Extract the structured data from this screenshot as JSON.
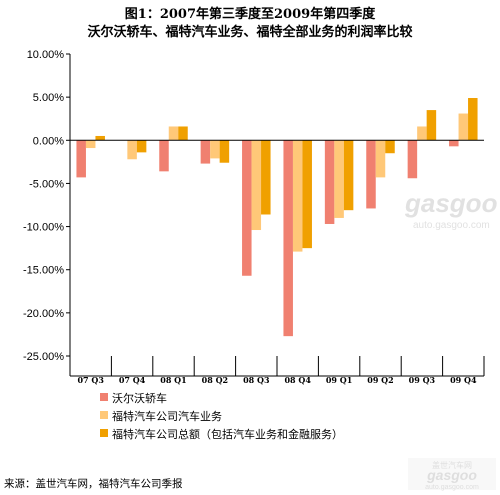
{
  "chart_data": {
    "type": "bar",
    "title_line1": "图1：2007年第三季度至2009年第四季度",
    "title_line2": "沃尔沃轿车、福特汽车业务、福特全部业务的利润率比较",
    "categories": [
      "07 Q3",
      "07 Q4",
      "08 Q1",
      "08 Q2",
      "08 Q3",
      "08 Q4",
      "09 Q1",
      "09 Q2",
      "09 Q3",
      "09 Q4"
    ],
    "y_ticks": [
      "10.00%",
      "5.00%",
      "0.00%",
      "-5.00%",
      "-10.00%",
      "-15.00%",
      "-20.00%",
      "-25.00%"
    ],
    "ylim": [
      -25,
      10
    ],
    "unit": "%",
    "grid": false,
    "legend_position": "bottom-left",
    "series": [
      {
        "name": "沃尔沃轿车",
        "color": "#f08070",
        "values": [
          -4.3,
          null,
          -3.6,
          -2.7,
          -15.7,
          -22.7,
          -9.7,
          -7.9,
          -4.4,
          -0.7
        ]
      },
      {
        "name": "福特汽车公司汽车业务",
        "color": "#ffc878",
        "values": [
          -0.9,
          -2.2,
          1.6,
          -2.1,
          -10.4,
          -12.9,
          -9.0,
          -4.3,
          1.6,
          3.1
        ]
      },
      {
        "name": "福特汽车公司总额（包括汽车业务和金融服务）",
        "color": "#f0a000",
        "values": [
          0.5,
          -1.4,
          1.6,
          -2.6,
          -8.6,
          -12.5,
          -8.1,
          -1.5,
          3.5,
          4.9
        ]
      }
    ]
  },
  "source": "来源：盖世汽车网，福特汽车公司季报",
  "watermark": {
    "brand": "gasgoo",
    "site": "auto.gasgoo.com",
    "cn": "盖世汽车网"
  }
}
